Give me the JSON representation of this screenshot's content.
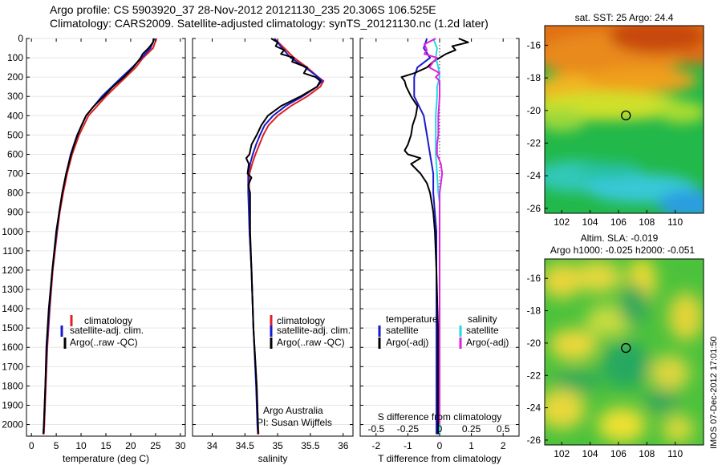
{
  "title_line1": "Argo profile: CS 5903920_37 28-Nov-2012 20121130_235 20.306S 106.525E",
  "title_line2": "Climatology: CARS2009. Satellite-adjusted climatology: synTS_20121130.nc (1.2d later)",
  "timestamp": "IMOS 07-Dec-2012 17:01:50",
  "colors": {
    "climatology": "#e02020",
    "satellite": "#1a1acc",
    "argo": "#000000",
    "satellite_s": "#22d8e8",
    "argo_s": "#e020e0"
  },
  "chart_data": [
    {
      "type": "line",
      "xlabel": "temperature (deg C)",
      "ylabel": "",
      "xlim": [
        -1,
        31
      ],
      "ylim": [
        2060,
        0
      ],
      "x_ticks": [
        "0",
        "5",
        "10",
        "15",
        "20",
        "25",
        "30"
      ],
      "y_ticks": [
        "0",
        "100",
        "200",
        "300",
        "400",
        "500",
        "600",
        "700",
        "800",
        "900",
        "1000",
        "1100",
        "1200",
        "1300",
        "1400",
        "1500",
        "1600",
        "1700",
        "1800",
        "1900",
        "2000"
      ],
      "legend": [
        "climatology",
        "satellite-adj. clim.",
        "Argo(..raw -QC)"
      ],
      "series": [
        {
          "name": "climatology",
          "color": "#e02020",
          "depth": [
            0,
            50,
            100,
            150,
            200,
            250,
            300,
            400,
            500,
            600,
            700,
            800,
            900,
            1000,
            1200,
            1400,
            1600,
            1800,
            2000,
            2050
          ],
          "values": [
            25.2,
            24.5,
            22.5,
            21.0,
            19.0,
            17.0,
            15.0,
            11.5,
            9.6,
            8.2,
            7.2,
            6.4,
            5.7,
            5.2,
            4.3,
            3.7,
            3.2,
            2.9,
            2.6,
            2.5
          ]
        },
        {
          "name": "satellite-adj. clim.",
          "color": "#1a1acc",
          "depth": [
            0,
            50,
            100,
            150,
            200,
            250,
            300,
            400,
            500,
            600,
            700,
            800,
            900,
            1000,
            1200,
            1400,
            1600,
            1800,
            2000,
            2050
          ],
          "values": [
            24.8,
            24.0,
            22.2,
            20.3,
            18.2,
            16.2,
            14.2,
            11.0,
            9.2,
            7.9,
            7.0,
            6.2,
            5.6,
            5.1,
            4.2,
            3.6,
            3.1,
            2.8,
            2.5,
            2.4
          ]
        },
        {
          "name": "Argo(..raw -QC)",
          "color": "#000000",
          "depth": [
            0,
            20,
            50,
            80,
            100,
            150,
            200,
            250,
            300,
            350,
            400,
            450,
            500,
            550,
            600,
            650,
            700,
            800,
            900,
            1000,
            1200,
            1400,
            1600,
            1800,
            2000,
            2050
          ],
          "values": [
            24.6,
            24.5,
            23.6,
            22.4,
            22.0,
            20.5,
            18.6,
            16.4,
            14.6,
            12.6,
            11.0,
            10.1,
            9.3,
            8.6,
            8.0,
            7.5,
            7.0,
            6.2,
            5.6,
            5.0,
            4.2,
            3.5,
            3.0,
            2.8,
            2.5,
            2.4
          ]
        }
      ]
    },
    {
      "type": "line",
      "xlabel": "salinity",
      "ylabel": "",
      "xlim": [
        33.7,
        36.15
      ],
      "ylim": [
        2060,
        0
      ],
      "x_ticks": [
        "34",
        "34.5",
        "35",
        "35.5",
        "36"
      ],
      "legend": [
        "climatology",
        "satellite-adj. clim.",
        "Argo(..raw -QC)"
      ],
      "annotations": [
        "Argo Australia",
        "PI: Susan Wijffels"
      ],
      "series": [
        {
          "name": "climatology",
          "color": "#e02020",
          "depth": [
            0,
            50,
            100,
            150,
            200,
            220,
            250,
            300,
            350,
            400,
            450,
            500,
            550,
            600,
            650,
            700,
            800,
            1000,
            1200,
            1500,
            1800,
            2000,
            2050
          ],
          "values": [
            34.95,
            35.1,
            35.25,
            35.45,
            35.62,
            35.7,
            35.65,
            35.45,
            35.2,
            35.0,
            34.86,
            34.78,
            34.72,
            34.66,
            34.61,
            34.57,
            34.56,
            34.57,
            34.6,
            34.63,
            34.68,
            34.7,
            34.71
          ]
        },
        {
          "name": "satellite-adj. clim.",
          "color": "#1a1acc",
          "depth": [
            0,
            50,
            100,
            150,
            200,
            220,
            250,
            300,
            350,
            400,
            450,
            500,
            550,
            600,
            650,
            700,
            800,
            1000,
            1200,
            1500,
            1800,
            2000,
            2050
          ],
          "values": [
            34.95,
            35.07,
            35.2,
            35.42,
            35.62,
            35.68,
            35.6,
            35.38,
            35.12,
            34.93,
            34.8,
            34.73,
            34.67,
            34.62,
            34.58,
            34.55,
            34.55,
            34.57,
            34.6,
            34.63,
            34.67,
            34.69,
            34.7
          ]
        },
        {
          "name": "Argo(..raw -QC)",
          "color": "#000000",
          "depth": [
            0,
            20,
            40,
            60,
            80,
            100,
            120,
            150,
            180,
            200,
            220,
            250,
            300,
            350,
            400,
            450,
            500,
            550,
            600,
            620,
            650,
            700,
            720,
            760,
            800,
            900,
            1000,
            1200,
            1500,
            1800,
            2000,
            2050
          ],
          "values": [
            34.9,
            35.0,
            34.97,
            35.1,
            35.05,
            35.25,
            35.22,
            35.45,
            35.4,
            35.58,
            35.65,
            35.6,
            35.35,
            35.05,
            34.85,
            34.75,
            34.68,
            34.6,
            34.57,
            34.52,
            34.56,
            34.54,
            34.6,
            34.55,
            34.58,
            34.58,
            34.58,
            34.6,
            34.63,
            34.68,
            34.7,
            34.7
          ]
        }
      ]
    },
    {
      "type": "line",
      "xlabel": "T difference from climatology",
      "x2label": "S difference from climatology",
      "xlim": [
        -2.5,
        2.5
      ],
      "x2lim": [
        -0.625,
        0.625
      ],
      "ylim": [
        2060,
        0
      ],
      "x_ticks": [
        "-2",
        "-1",
        "0",
        "1",
        "2"
      ],
      "x2_ticks": [
        "-0.5",
        "-0.25",
        "0",
        "0.25",
        "0.5"
      ],
      "legend_titles": [
        "temperature",
        "salinity"
      ],
      "legend": [
        "satellite",
        "Argo(-adj)",
        "satellite",
        "Argo(-adj)"
      ],
      "series": [
        {
          "name": "satellite",
          "quantity": "temperature",
          "color": "#1a1acc",
          "depth": [
            0,
            50,
            100,
            150,
            200,
            250,
            300,
            400,
            500,
            600,
            700,
            800,
            1000,
            1200,
            1500,
            1800,
            2000,
            2050
          ],
          "values": [
            -0.4,
            -0.5,
            -0.3,
            -0.7,
            -0.8,
            -0.8,
            -0.8,
            -0.5,
            -0.4,
            -0.3,
            -0.2,
            -0.2,
            -0.1,
            -0.1,
            -0.1,
            -0.1,
            -0.1,
            -0.1
          ]
        },
        {
          "name": "Argo(-adj)",
          "quantity": "temperature",
          "color": "#000000",
          "depth": [
            0,
            20,
            40,
            60,
            80,
            100,
            120,
            150,
            180,
            200,
            220,
            250,
            300,
            350,
            400,
            450,
            500,
            550,
            580,
            600,
            620,
            650,
            700,
            750,
            800,
            900,
            1000,
            1200,
            1500,
            1800,
            2000,
            2050
          ],
          "values": [
            0.6,
            0.9,
            0.4,
            0.5,
            0.2,
            0.0,
            -0.2,
            -0.4,
            -0.8,
            -1.2,
            -1.1,
            -1.05,
            -0.9,
            -0.7,
            -0.75,
            -0.85,
            -0.9,
            -1.0,
            -1.1,
            -1.0,
            -0.6,
            -0.9,
            -0.6,
            -0.4,
            -0.3,
            -0.2,
            -0.15,
            -0.1,
            -0.05,
            -0.05,
            -0.05,
            -0.05
          ]
        },
        {
          "name": "satellite",
          "quantity": "salinity",
          "color": "#22d8e8",
          "depth": [
            0,
            50,
            100,
            150,
            200,
            250,
            300,
            400,
            500,
            600,
            700,
            800,
            850,
            900,
            1000,
            1200,
            1500,
            1800,
            2000,
            2050
          ],
          "values": [
            -0.05,
            -0.02,
            -0.03,
            -0.01,
            0.0,
            -0.02,
            -0.02,
            -0.03,
            -0.03,
            -0.03,
            -0.02,
            -0.01,
            0.0,
            0.0,
            0.0,
            0.0,
            0.0,
            0.0,
            0.0,
            0.0
          ]
        },
        {
          "name": "Argo(-adj)",
          "quantity": "salinity",
          "color": "#e020e0",
          "depth": [
            0,
            30,
            60,
            80,
            100,
            120,
            150,
            180,
            200,
            220,
            250,
            300,
            400,
            500,
            550,
            600,
            650,
            700,
            750,
            800,
            850,
            900,
            1000,
            1200,
            1500,
            1800,
            2000
          ],
          "values": [
            -0.03,
            -0.12,
            -0.1,
            -0.12,
            -0.02,
            -0.05,
            -0.08,
            0.0,
            -0.03,
            0.0,
            0.0,
            0.0,
            -0.01,
            -0.01,
            -0.02,
            -0.02,
            0.01,
            0.02,
            0.01,
            0.0,
            0.0,
            0.0,
            0.0,
            0.0,
            0.0,
            0.0,
            0.0
          ]
        }
      ]
    },
    {
      "type": "heatmap",
      "title": "sat. SST: 25  Argo: 24.4",
      "x_ticks": [
        "102",
        "104",
        "106",
        "108",
        "110"
      ],
      "y_ticks": [
        "-16",
        "-18",
        "-20",
        "-22",
        "-24",
        "-26"
      ],
      "xlim": [
        100.8,
        112
      ],
      "ylim": [
        -26.3,
        -14.8
      ],
      "marker": {
        "lon": 106.525,
        "lat": -20.306
      }
    },
    {
      "type": "heatmap",
      "title": "Altim. SLA: -0.019",
      "subtitle": "Argo h1000: -0.025 h2000: -0.051",
      "x_ticks": [
        "102",
        "104",
        "106",
        "108",
        "110"
      ],
      "y_ticks": [
        "-16",
        "-18",
        "-20",
        "-22",
        "-24",
        "-26"
      ],
      "xlim": [
        100.8,
        112
      ],
      "ylim": [
        -26.3,
        -14.8
      ],
      "marker": {
        "lon": 106.525,
        "lat": -20.306
      }
    }
  ]
}
